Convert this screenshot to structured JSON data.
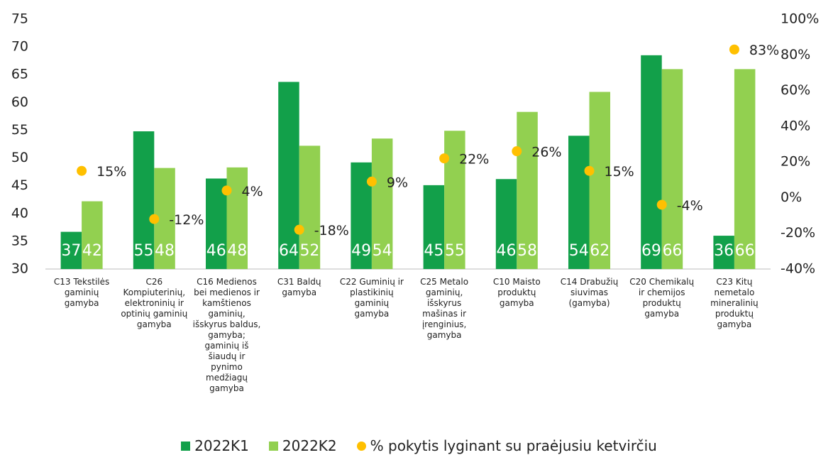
{
  "chart_data": {
    "type": "bar",
    "categories": [
      "C13 Tekstilės gaminių gamyba",
      "C26 Kompiuterinių, elektroninių ir optinių gaminių gamyba",
      "C16 Medienos bei medienos ir kamštienos gaminių, išskyrus baldus, gamyba; gaminių iš šiaudų ir pynimo medžiagų gamyba",
      "C31 Baldų gamyba",
      "C22 Guminių ir plastikinių gaminių gamyba",
      "C25 Metalo gaminių, išskyrus mašinas ir įrenginius, gamyba",
      "C10 Maisto produktų gamyba",
      "C14 Drabužių siuvimas (gamyba)",
      "C20 Chemikalų ir chemijos produktų gamyba",
      "C23 Kitų nemetalo mineralinių produktų gamyba"
    ],
    "series": [
      {
        "name": "2022K1",
        "color": "#12a04a",
        "values": [
          36.7,
          54.8,
          46.3,
          63.7,
          49.2,
          45.1,
          46.2,
          54,
          68.5,
          36
        ],
        "value_labels": [
          "37",
          "55",
          "46",
          "64",
          "49",
          "45",
          "46",
          "54",
          "69",
          "36"
        ]
      },
      {
        "name": "2022K2",
        "color": "#92d050",
        "values": [
          42.2,
          48.2,
          48.3,
          52.2,
          53.5,
          54.9,
          58.3,
          61.9,
          66,
          66
        ],
        "value_labels": [
          "42",
          "48",
          "48",
          "52",
          "54",
          "55",
          "58",
          "62",
          "66",
          "66"
        ]
      },
      {
        "name": "% pokytis lyginant su praėjusiu ketvirčiu",
        "color": "#ffc000",
        "type": "scatter",
        "axis": "y2",
        "values": [
          15,
          -12,
          4,
          -18,
          9,
          22,
          26,
          15,
          -4,
          83
        ],
        "value_labels": [
          "15%",
          "-12%",
          "4%",
          "-18%",
          "9%",
          "22%",
          "26%",
          "15%",
          "-4%",
          "83%"
        ]
      }
    ],
    "ylim": [
      30,
      75
    ],
    "yticks": [
      30,
      35,
      40,
      45,
      50,
      55,
      60,
      65,
      70,
      75
    ],
    "y2lim": [
      -40,
      100
    ],
    "y2ticks": [
      {
        "value": -40,
        "label": "-40%"
      },
      {
        "value": -20,
        "label": "-20%"
      },
      {
        "value": 0,
        "label": "0%"
      },
      {
        "value": 20,
        "label": "20%"
      },
      {
        "value": 40,
        "label": "40%"
      },
      {
        "value": 60,
        "label": "60%"
      },
      {
        "value": 80,
        "label": "80%"
      },
      {
        "value": 100,
        "label": "100%"
      }
    ],
    "grid": false,
    "legend": "bottom"
  }
}
